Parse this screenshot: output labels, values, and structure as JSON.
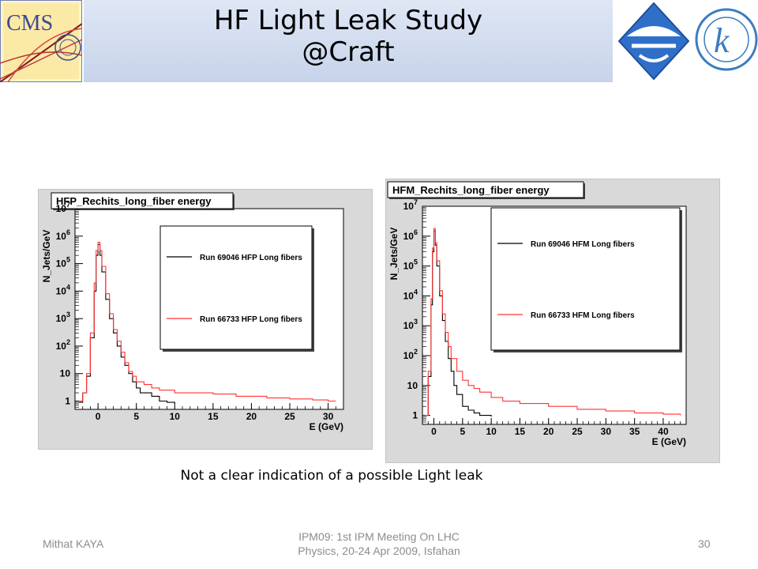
{
  "slide": {
    "title_line1": "HF Light Leak Study",
    "title_line2": "@Craft",
    "caption": "Not a clear indication of a possible Light leak",
    "footer": {
      "author": "Mithat KAYA",
      "event_line1": "IPM09: 1st IPM Meeting On LHC",
      "event_line2": "Physics, 20-24 Apr 2009, Isfahan",
      "page": "30"
    },
    "logos": {
      "left": {
        "icon": "cms-logo-icon",
        "text": "CMS"
      },
      "right1": {
        "icon": "diamond-logo-icon"
      },
      "right2": {
        "icon": "kafkas-university-seal-icon",
        "letter": "k"
      }
    }
  },
  "chart_data": [
    {
      "type": "line",
      "title": "HFP_Rechits_long_fiber energy",
      "xlabel": "E (GeV)",
      "ylabel": "N_Jets/GeV",
      "log_y": true,
      "xlim": [
        -3,
        32
      ],
      "ylim": [
        0.5,
        10000000.0
      ],
      "x_ticks": [
        0,
        5,
        10,
        15,
        20,
        25,
        30
      ],
      "y_ticks": [
        {
          "value": 1,
          "base": "1",
          "exp": ""
        },
        {
          "value": 10,
          "base": "10",
          "exp": ""
        },
        {
          "value": 100,
          "base": "10",
          "exp": "2"
        },
        {
          "value": 1000,
          "base": "10",
          "exp": "3"
        },
        {
          "value": 10000,
          "base": "10",
          "exp": "4"
        },
        {
          "value": 100000,
          "base": "10",
          "exp": "5"
        },
        {
          "value": 1000000,
          "base": "10",
          "exp": "6"
        },
        {
          "value": 10000000,
          "base": "10",
          "exp": "7"
        }
      ],
      "legend_position": "top-right",
      "series": [
        {
          "name": "Run 69046 HFP Long fibers",
          "color": "#000000",
          "x": [
            -2.5,
            -2,
            -1.5,
            -1,
            -0.5,
            -0.25,
            0,
            0.25,
            0.5,
            1,
            1.5,
            2,
            2.5,
            3,
            3.5,
            4,
            4.5,
            5,
            5.5,
            6,
            7,
            8,
            9,
            10
          ],
          "y": [
            0.9,
            2,
            8,
            200,
            10000,
            200000,
            500000,
            200000,
            50000,
            5000,
            1000,
            300,
            100,
            40,
            20,
            10,
            5,
            3,
            2,
            2,
            1.5,
            1,
            0.9,
            0.8
          ]
        },
        {
          "name": "Run 66733 HFP Long fibers",
          "color": "#ff3333",
          "x": [
            -2.5,
            -2,
            -1.5,
            -1,
            -0.5,
            -0.25,
            0,
            0.25,
            0.5,
            1,
            1.5,
            2,
            2.5,
            3,
            3.5,
            4,
            4.5,
            5,
            6,
            7,
            8,
            10,
            12,
            15,
            18,
            20,
            22,
            25,
            28,
            30,
            31
          ],
          "y": [
            1,
            2,
            10,
            300,
            20000,
            300000,
            600000,
            300000,
            80000,
            8000,
            1500,
            400,
            150,
            60,
            25,
            12,
            8,
            5,
            4,
            3,
            2.5,
            2,
            2,
            1.8,
            1.5,
            1.5,
            1.3,
            1.2,
            1.1,
            1,
            1
          ]
        }
      ]
    },
    {
      "type": "line",
      "title": "HFM_Rechits_long_fiber energy",
      "xlabel": "E (GeV)",
      "ylabel": "N_Jets/GeV",
      "log_y": true,
      "xlim": [
        -2,
        44
      ],
      "ylim": [
        0.5,
        10000000.0
      ],
      "x_ticks": [
        0,
        5,
        10,
        15,
        20,
        25,
        30,
        35,
        40
      ],
      "y_ticks": [
        {
          "value": 1,
          "base": "1",
          "exp": ""
        },
        {
          "value": 10,
          "base": "10",
          "exp": ""
        },
        {
          "value": 100,
          "base": "10",
          "exp": "2"
        },
        {
          "value": 1000,
          "base": "10",
          "exp": "3"
        },
        {
          "value": 10000,
          "base": "10",
          "exp": "4"
        },
        {
          "value": 100000,
          "base": "10",
          "exp": "5"
        },
        {
          "value": 1000000,
          "base": "10",
          "exp": "6"
        },
        {
          "value": 10000000,
          "base": "10",
          "exp": "7"
        }
      ],
      "legend_position": "top-right",
      "series": [
        {
          "name": "Run 69046 HFM Long fibers",
          "color": "#000000",
          "x": [
            -1.5,
            -1,
            -0.5,
            -0.25,
            0,
            0.25,
            0.5,
            1,
            1.5,
            2,
            2.5,
            3,
            3.5,
            4,
            5,
            6,
            7,
            8,
            10
          ],
          "y": [
            1,
            20,
            5000,
            300000,
            1500000,
            500000,
            100000,
            10000,
            1500,
            300,
            80,
            30,
            10,
            5,
            2,
            1.5,
            1.2,
            1,
            0.9
          ]
        },
        {
          "name": "Run 66733 HFM Long fibers",
          "color": "#ff3333",
          "x": [
            -1.5,
            -1,
            -0.5,
            -0.25,
            0,
            0.25,
            0.5,
            1,
            1.5,
            2,
            2.5,
            3,
            4,
            5,
            6,
            7,
            8,
            10,
            12,
            15,
            20,
            25,
            30,
            35,
            40,
            43
          ],
          "y": [
            1,
            30,
            8000,
            400000,
            1800000,
            600000,
            150000,
            15000,
            2500,
            600,
            200,
            80,
            30,
            15,
            10,
            8,
            6,
            4,
            3,
            2.5,
            2,
            1.6,
            1.4,
            1.2,
            1.1,
            1
          ]
        }
      ]
    }
  ]
}
